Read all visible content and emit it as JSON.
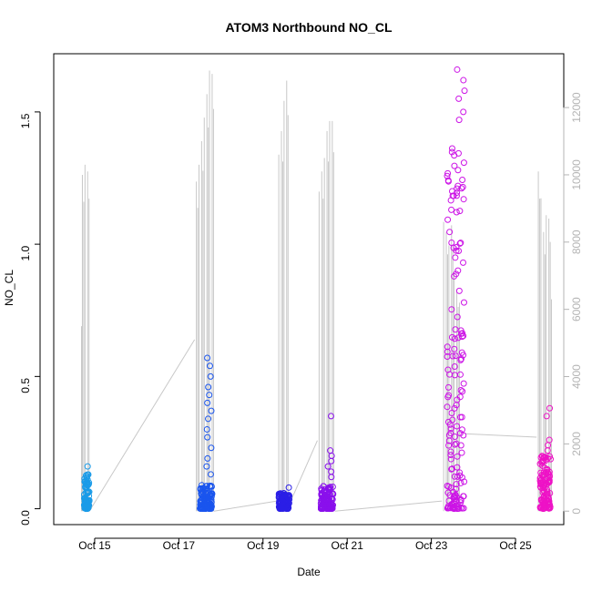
{
  "chart_data": {
    "type": "scatter",
    "title": "ATOM3 Northbound NO_CL",
    "xlabel": "Date",
    "ylabel": "NO_CL",
    "x_axis": {
      "kind": "date",
      "range": [
        "2020-10-14T00:40",
        "2020-10-26T03:30"
      ],
      "ticks": [
        {
          "value": "2020-10-15",
          "label": "Oct 15"
        },
        {
          "value": "2020-10-17",
          "label": "Oct 17"
        },
        {
          "value": "2020-10-19",
          "label": "Oct 19"
        },
        {
          "value": "2020-10-21",
          "label": "Oct 21"
        },
        {
          "value": "2020-10-23",
          "label": "Oct 23"
        },
        {
          "value": "2020-10-25",
          "label": "Oct 25"
        }
      ]
    },
    "y_axis": {
      "range": [
        -0.06,
        1.72
      ],
      "ticks": [
        {
          "value": 0.0,
          "label": "0.0"
        },
        {
          "value": 0.5,
          "label": "0.5"
        },
        {
          "value": 1.0,
          "label": "1.0"
        },
        {
          "value": 1.5,
          "label": "1.5"
        }
      ]
    },
    "y2_axis": {
      "range": [
        -400,
        13600
      ],
      "ticks": [
        {
          "value": 0,
          "label": "0"
        },
        {
          "value": 2000,
          "label": "2000"
        },
        {
          "value": 4000,
          "label": "4000"
        },
        {
          "value": 6000,
          "label": "6000"
        },
        {
          "value": 8000,
          "label": "8000"
        },
        {
          "value": 10000,
          "label": "10000"
        },
        {
          "value": 12000,
          "label": "12000"
        }
      ]
    },
    "series": [
      {
        "color": "#1a9be8",
        "x_start": "2020-10-14T18:00",
        "x_end": "2020-10-14T21:00",
        "y_max": 0.15,
        "typical_max": 0.13,
        "outliers": [
          0.16
        ]
      },
      {
        "color": "#1a55ee",
        "x_start": "2020-10-17T12:00",
        "x_end": "2020-10-17T19:00",
        "y_max": 0.57,
        "typical_max": 0.09,
        "outliers": [
          0.57,
          0.54,
          0.5,
          0.46,
          0.43,
          0.4,
          0.37,
          0.34,
          0.3,
          0.27,
          0.23,
          0.19,
          0.16,
          0.13
        ]
      },
      {
        "color": "#2b1fe6",
        "x_start": "2020-10-19T09:00",
        "x_end": "2020-10-19T15:00",
        "y_max": 0.08,
        "typical_max": 0.06,
        "outliers": [
          0.08
        ]
      },
      {
        "color": "#8a10ec",
        "x_start": "2020-10-20T09:00",
        "x_end": "2020-10-20T16:00",
        "y_max": 0.35,
        "typical_max": 0.09,
        "outliers": [
          0.35,
          0.22,
          0.2,
          0.18,
          0.16,
          0.14,
          0.12
        ]
      },
      {
        "color": "#cc14e6",
        "x_start": "2020-10-23T09:00",
        "x_end": "2020-10-23T19:00",
        "y_max": 1.66,
        "typical_max": 1.45,
        "outliers": [
          1.66,
          1.62,
          1.58,
          1.55,
          1.5,
          1.47
        ]
      },
      {
        "color": "#ee12c6",
        "x_start": "2020-10-25T14:00",
        "x_end": "2020-10-25T20:00",
        "y_max": 0.38,
        "typical_max": 0.2,
        "outliers": [
          0.38,
          0.35,
          0.26,
          0.24,
          0.22
        ]
      }
    ],
    "secondary_series": {
      "color": "#c8c8c8",
      "axis": "right",
      "description_free": true,
      "spikes": [
        {
          "x": "2020-10-14T17:00",
          "y": 10000
        },
        {
          "x": "2020-10-14T18:30",
          "y": 10300
        },
        {
          "x": "2020-10-14T20:00",
          "y": 10100
        },
        {
          "x": "2020-10-14T16:30",
          "y": 5500
        },
        {
          "x": "2020-10-17T10:00",
          "y": 9800
        },
        {
          "x": "2020-10-17T11:30",
          "y": 10300
        },
        {
          "x": "2020-10-17T13:00",
          "y": 11000
        },
        {
          "x": "2020-10-17T14:30",
          "y": 11700
        },
        {
          "x": "2020-10-17T16:00",
          "y": 12400
        },
        {
          "x": "2020-10-17T17:30",
          "y": 13100
        },
        {
          "x": "2020-10-17T19:00",
          "y": 13000
        },
        {
          "x": "2020-10-19T09:00",
          "y": 10600
        },
        {
          "x": "2020-10-19T10:30",
          "y": 11300
        },
        {
          "x": "2020-10-19T12:00",
          "y": 12200
        },
        {
          "x": "2020-10-19T13:30",
          "y": 12800
        },
        {
          "x": "2020-10-20T08:00",
          "y": 9500
        },
        {
          "x": "2020-10-20T09:30",
          "y": 10100
        },
        {
          "x": "2020-10-20T11:00",
          "y": 10500
        },
        {
          "x": "2020-10-20T12:30",
          "y": 11300
        },
        {
          "x": "2020-10-20T14:00",
          "y": 11600
        },
        {
          "x": "2020-10-20T15:30",
          "y": 11600
        },
        {
          "x": "2020-10-23T07:00",
          "y": 8600
        },
        {
          "x": "2020-10-23T08:30",
          "y": 8300
        },
        {
          "x": "2020-10-23T10:00",
          "y": 7900
        },
        {
          "x": "2020-10-23T11:30",
          "y": 8500
        },
        {
          "x": "2020-10-23T13:00",
          "y": 7100
        },
        {
          "x": "2020-10-23T14:30",
          "y": 6600
        },
        {
          "x": "2020-10-23T16:00",
          "y": 6200
        },
        {
          "x": "2020-10-25T13:00",
          "y": 10100
        },
        {
          "x": "2020-10-25T14:30",
          "y": 9300
        },
        {
          "x": "2020-10-25T16:00",
          "y": 8300
        },
        {
          "x": "2020-10-25T17:30",
          "y": 8800
        },
        {
          "x": "2020-10-25T19:00",
          "y": 8700
        },
        {
          "x": "2020-10-25T20:30",
          "y": 6300
        }
      ],
      "connectors": [
        {
          "x": [
            "2020-10-14T21:00",
            "2020-10-17T09:00"
          ],
          "y": [
            0,
            5100
          ]
        },
        {
          "x": [
            "2020-10-17T20:00",
            "2020-10-19T08:00"
          ],
          "y": [
            0,
            300
          ]
        },
        {
          "x": [
            "2020-10-19T15:00",
            "2020-10-20T07:00"
          ],
          "y": [
            200,
            2100
          ]
        },
        {
          "x": [
            "2020-10-20T17:00",
            "2020-10-23T06:00"
          ],
          "y": [
            0,
            300
          ]
        },
        {
          "x": [
            "2020-10-23T19:00",
            "2020-10-25T12:00"
          ],
          "y": [
            2300,
            2200
          ]
        }
      ]
    },
    "grid": false,
    "legend": "none"
  }
}
